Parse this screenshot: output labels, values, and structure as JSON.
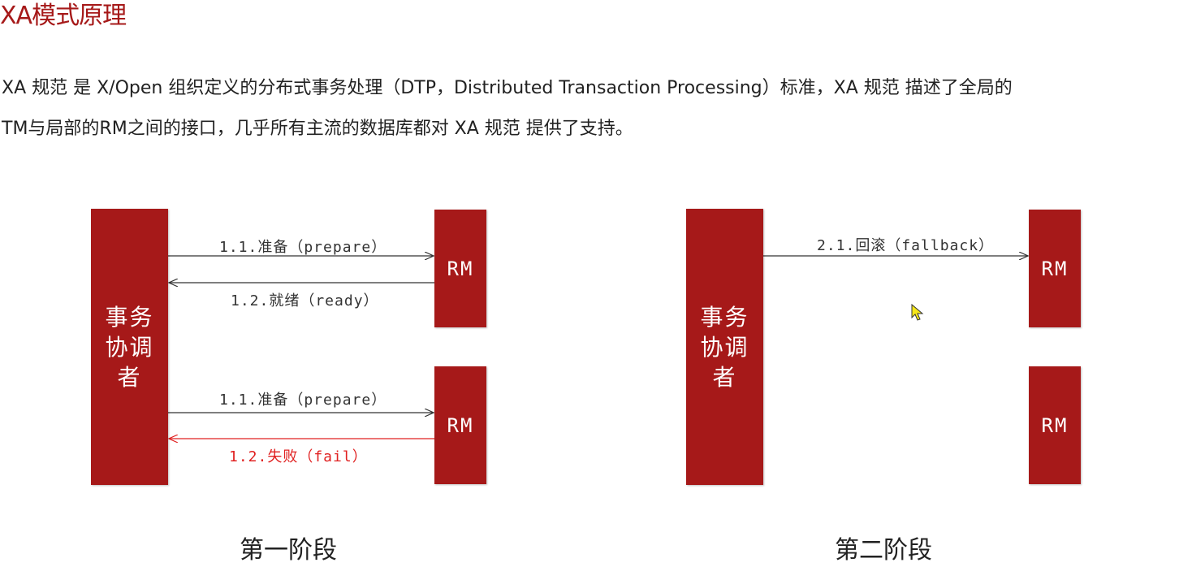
{
  "title": "XA模式原理",
  "paragraph": {
    "line1": "XA 规范 是 X/Open 组织定义的分布式事务处理（DTP，Distributed Transaction Processing）标准，XA 规范 描述了全局的",
    "line2": "TM与局部的RM之间的接口，几乎所有主流的数据库都对 XA 规范 提供了支持。"
  },
  "phase1": {
    "label": "第一阶段",
    "coordinator": {
      "line1": "事务",
      "line2": "协调",
      "line3": "者"
    },
    "rm_top": "RM",
    "rm_bottom": "RM",
    "arrow_prepare_top": "1.1.准备（prepare）",
    "arrow_ready": "1.2.就绪（ready）",
    "arrow_prepare_bottom": "1.1.准备（prepare）",
    "arrow_fail": "1.2.失败（fail）"
  },
  "phase2": {
    "label": "第二阶段",
    "coordinator": {
      "line1": "事务",
      "line2": "协调",
      "line3": "者"
    },
    "rm_top": "RM",
    "rm_bottom": "RM",
    "arrow_rollback": "2.1.回滚（fallback）"
  },
  "colors": {
    "box": "#a61919",
    "fail": "#e02020",
    "arrow": "#333333",
    "cursor": "#f5e61a"
  },
  "icons": {
    "cursor": "mouse-pointer-icon"
  }
}
